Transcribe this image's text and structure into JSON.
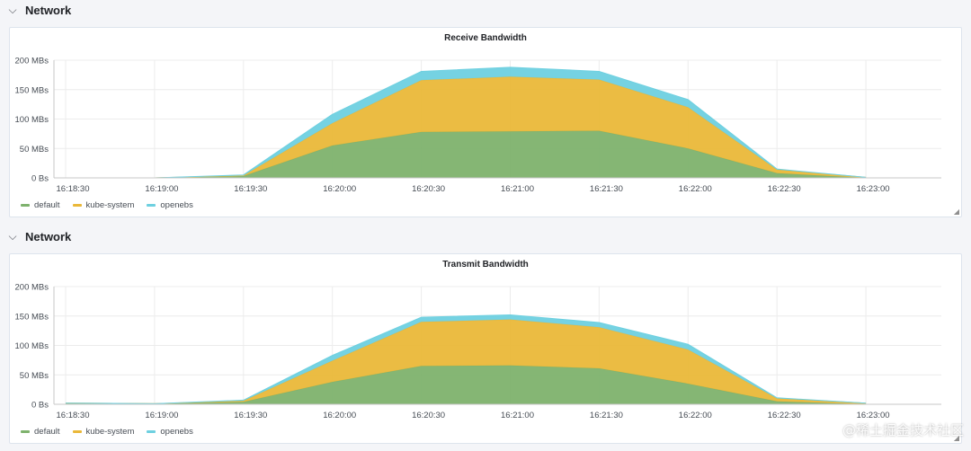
{
  "rows": [
    {
      "title": "Network"
    },
    {
      "title": "Network"
    }
  ],
  "colors": {
    "default": "#7eb26d",
    "kube-system": "#eab839",
    "openebs": "#6ed0e0"
  },
  "watermark": "@稀土掘金技术社区",
  "chart_data": [
    {
      "type": "area",
      "stacked": true,
      "title": "Receive Bandwidth",
      "x": [
        "16:18:30",
        "16:19:00",
        "16:19:30",
        "16:20:00",
        "16:20:30",
        "16:21:00",
        "16:21:30",
        "16:22:00",
        "16:22:30",
        "16:23:00"
      ],
      "y_ticks": [
        "0 Bs",
        "50 MBs",
        "100 MBs",
        "150 MBs",
        "200 MBs"
      ],
      "ylim": [
        0,
        200
      ],
      "grid": true,
      "legend_position": "bottom-left",
      "series": [
        {
          "name": "default",
          "color": "#7eb26d",
          "values": [
            0,
            0,
            3,
            55,
            78,
            79,
            80,
            50,
            8,
            0
          ]
        },
        {
          "name": "kube-system",
          "color": "#eab839",
          "values": [
            0,
            0,
            1,
            38,
            88,
            93,
            87,
            70,
            6,
            1
          ]
        },
        {
          "name": "openebs",
          "color": "#6ed0e0",
          "values": [
            0,
            0,
            1,
            15,
            15,
            16,
            14,
            13,
            1,
            0
          ]
        }
      ]
    },
    {
      "type": "area",
      "stacked": true,
      "title": "Transmit Bandwidth",
      "x": [
        "16:18:30",
        "16:19:00",
        "16:19:30",
        "16:20:00",
        "16:20:30",
        "16:21:00",
        "16:21:30",
        "16:22:00",
        "16:22:30",
        "16:23:00"
      ],
      "y_ticks": [
        "0 Bs",
        "50 MBs",
        "100 MBs",
        "150 MBs",
        "200 MBs"
      ],
      "ylim": [
        0,
        200
      ],
      "grid": true,
      "legend_position": "bottom-left",
      "series": [
        {
          "name": "default",
          "color": "#7eb26d",
          "values": [
            2,
            1,
            4,
            38,
            65,
            66,
            61,
            35,
            5,
            0
          ]
        },
        {
          "name": "kube-system",
          "color": "#eab839",
          "values": [
            0,
            0,
            2,
            36,
            75,
            78,
            70,
            58,
            5,
            2
          ]
        },
        {
          "name": "openebs",
          "color": "#6ed0e0",
          "values": [
            0,
            0,
            1,
            9,
            8,
            8,
            8,
            9,
            1,
            0
          ]
        }
      ]
    }
  ]
}
